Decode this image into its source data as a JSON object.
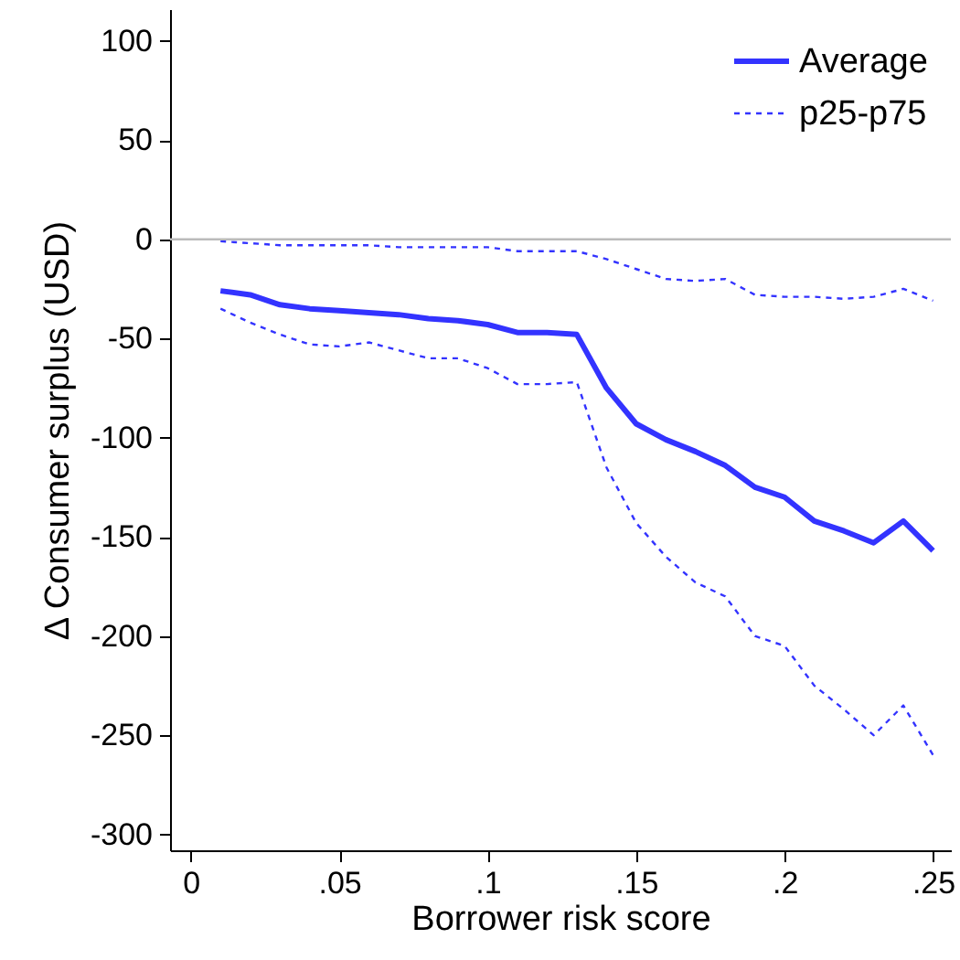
{
  "chart_data": {
    "type": "line",
    "xlabel": "Borrower risk score",
    "ylabel": "Δ Consumer surplus (USD)",
    "x": [
      0.01,
      0.02,
      0.03,
      0.04,
      0.05,
      0.06,
      0.07,
      0.08,
      0.09,
      0.1,
      0.11,
      0.12,
      0.13,
      0.14,
      0.15,
      0.16,
      0.17,
      0.18,
      0.19,
      0.2,
      0.21,
      0.22,
      0.23,
      0.24,
      0.25
    ],
    "series": [
      {
        "name": "Average",
        "color": "#3333ff",
        "line_style": "solid",
        "values": [
          -26,
          -28,
          -33,
          -35,
          -36,
          -37,
          -38,
          -40,
          -41,
          -43,
          -47,
          -47,
          -48,
          -75,
          -93,
          -101,
          -107,
          -114,
          -125,
          -130,
          -142,
          -147,
          -153,
          -142,
          -157
        ]
      },
      {
        "name": "p25-p75",
        "color": "#3333ff",
        "line_style": "dashed",
        "values": [
          -1,
          -2,
          -3,
          -3,
          -3,
          -3,
          -4,
          -4,
          -4,
          -4,
          -6,
          -6,
          -6,
          -10,
          -15,
          -20,
          -21,
          -20,
          -28,
          -29,
          -29,
          -30,
          -29,
          -25,
          -31
        ]
      },
      {
        "color": "#3333ff",
        "line_style": "dashed",
        "values": [
          -35,
          -42,
          -48,
          -53,
          -54,
          -52,
          -56,
          -60,
          -60,
          -65,
          -73,
          -73,
          -72,
          -115,
          -143,
          -160,
          -173,
          -180,
          -200,
          -205,
          -225,
          -237,
          -250,
          -235,
          -260
        ]
      }
    ],
    "xlim": [
      -0.007,
      0.256
    ],
    "xticks": [
      0,
      {
        "value": 0.05,
        "label": ".05"
      },
      {
        "value": 0.1,
        "label": ".1"
      },
      {
        "value": 0.15,
        "label": ".15"
      },
      {
        "value": 0.2,
        "label": ".2"
      },
      {
        "value": 0.25,
        "label": ".25"
      }
    ],
    "ylim": [
      -308,
      116
    ],
    "yticks": [
      -300,
      -250,
      -200,
      -150,
      -100,
      -50,
      0,
      50,
      100
    ],
    "ref_lines": [
      {
        "axis": "y",
        "value": 0,
        "color": "#bbbbbb"
      }
    ],
    "grid": false,
    "legend": "top right"
  }
}
